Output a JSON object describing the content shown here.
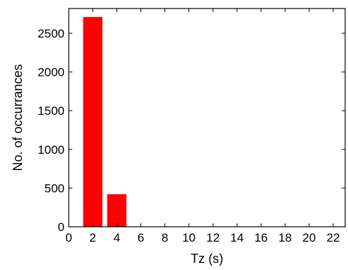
{
  "chart_data": {
    "type": "bar",
    "title": "",
    "xlabel": "Tz (s)",
    "ylabel": "No. of occurrances",
    "x": [
      2,
      4
    ],
    "values": [
      2710,
      420
    ],
    "bar_width": 1.6,
    "xlim": [
      0,
      23
    ],
    "ylim": [
      0,
      2820
    ],
    "xticks": [
      0,
      2,
      4,
      6,
      8,
      10,
      12,
      14,
      16,
      18,
      20,
      22
    ],
    "yticks": [
      0,
      500,
      1000,
      1500,
      2000,
      2500
    ],
    "grid": false,
    "bar_color": "#ff0000"
  }
}
